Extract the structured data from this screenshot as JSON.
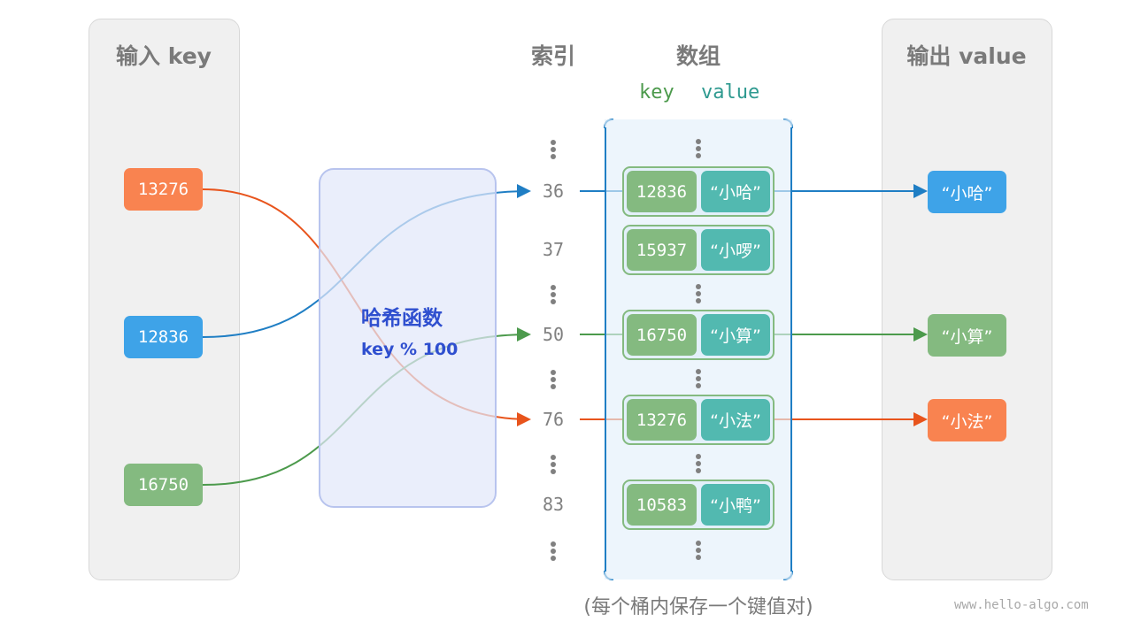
{
  "input_panel": {
    "title": "输入 key",
    "keys": [
      {
        "value": "13276",
        "color": "#f98350"
      },
      {
        "value": "12836",
        "color": "#3ea3e8"
      },
      {
        "value": "16750",
        "color": "#84ba80"
      }
    ]
  },
  "hash_function": {
    "title": "哈希函数",
    "formula": "key % 100"
  },
  "index_column": {
    "title": "索引",
    "indices": [
      "36",
      "37",
      "50",
      "76",
      "83"
    ]
  },
  "array": {
    "title": "数组",
    "key_label": "key",
    "value_label": "value",
    "entries": [
      {
        "index": "36",
        "key": "12836",
        "value": "“小哈”"
      },
      {
        "index": "37",
        "key": "15937",
        "value": "“小啰”"
      },
      {
        "index": "50",
        "key": "16750",
        "value": "“小算”"
      },
      {
        "index": "76",
        "key": "13276",
        "value": "“小法”"
      },
      {
        "index": "83",
        "key": "10583",
        "value": "“小鸭”"
      }
    ]
  },
  "output_panel": {
    "title": "输出 value",
    "values": [
      {
        "value": "“小哈”",
        "color": "#3ea3e8"
      },
      {
        "value": "“小算”",
        "color": "#84ba80"
      },
      {
        "value": "“小法”",
        "color": "#f98350"
      }
    ]
  },
  "caption": "(每个桶内保存一个键值对)",
  "watermark": "www.hello-algo.com"
}
